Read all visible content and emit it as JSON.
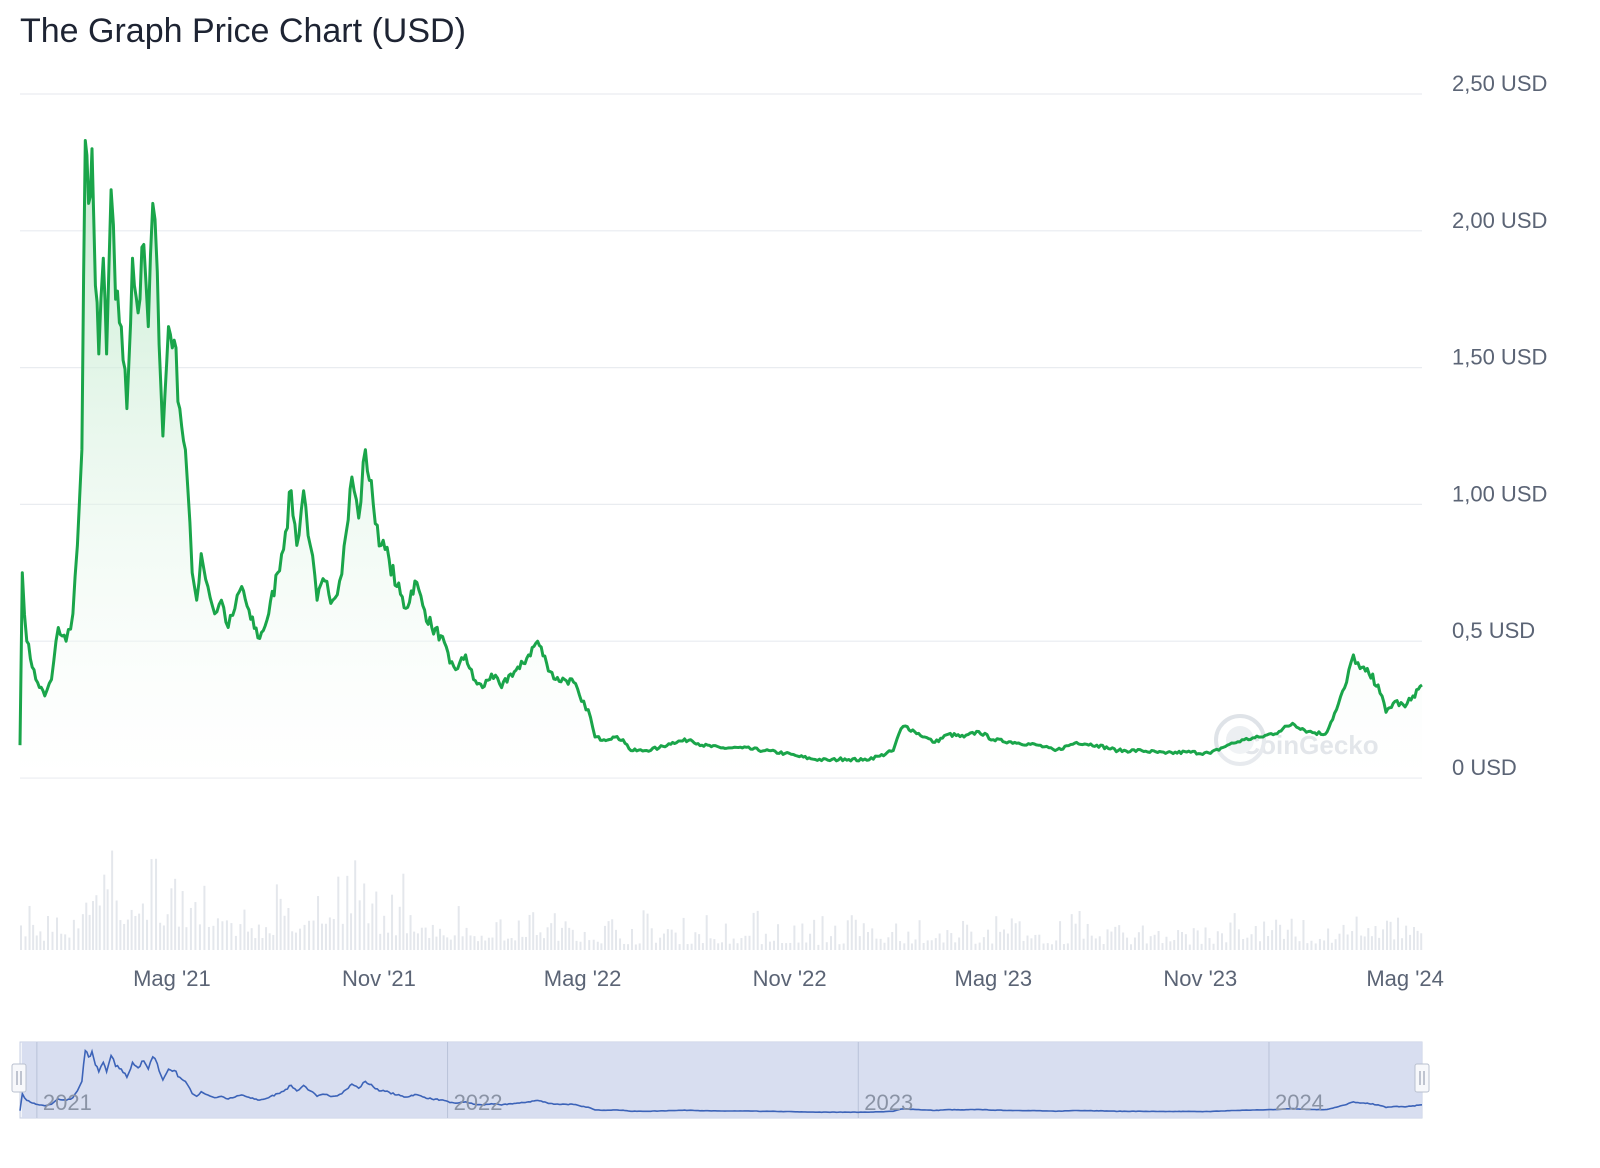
{
  "title": "The Graph Price Chart (USD)",
  "watermark": "CoinGecko",
  "colors": {
    "line": "#1aa54a",
    "fill_top": "#b9e7c6",
    "grid": "#e9ecf0",
    "volume": "#e4e7ec",
    "navigator_bg": "#d5dcee",
    "navigator_line": "#3c63b8"
  },
  "chart_data": {
    "type": "area",
    "title": "The Graph Price Chart (USD)",
    "ylabel": "",
    "ylim": [
      0,
      2.5
    ],
    "y_tick_labels": [
      "0 USD",
      "0,5 USD",
      "1,00 USD",
      "1,50 USD",
      "2,00 USD",
      "2,50 USD"
    ],
    "y_tick_values": [
      0,
      0.5,
      1.0,
      1.5,
      2.0,
      2.5
    ],
    "x_tick_labels": [
      "Mag '21",
      "Nov '21",
      "Mag '22",
      "Nov '22",
      "Mag '23",
      "Nov '23",
      "Mag '24"
    ],
    "x_tick_dates": [
      "2021-05-01",
      "2021-11-01",
      "2022-05-01",
      "2022-11-01",
      "2023-05-01",
      "2023-11-01",
      "2024-05-01"
    ],
    "xlim": [
      "2020-12-17",
      "2024-05-16"
    ],
    "grid": true,
    "series": [
      {
        "values": [
          [
            "2020-12-17",
            0.12
          ],
          [
            "2020-12-19",
            0.75
          ],
          [
            "2020-12-23",
            0.5
          ],
          [
            "2020-12-31",
            0.36
          ],
          [
            "2021-01-08",
            0.3
          ],
          [
            "2021-01-14",
            0.36
          ],
          [
            "2021-01-20",
            0.55
          ],
          [
            "2021-01-27",
            0.5
          ],
          [
            "2021-02-02",
            0.6
          ],
          [
            "2021-02-06",
            0.85
          ],
          [
            "2021-02-10",
            1.2
          ],
          [
            "2021-02-13",
            2.33
          ],
          [
            "2021-02-16",
            2.1
          ],
          [
            "2021-02-19",
            2.3
          ],
          [
            "2021-02-22",
            1.8
          ],
          [
            "2021-02-25",
            1.55
          ],
          [
            "2021-03-01",
            1.9
          ],
          [
            "2021-03-04",
            1.55
          ],
          [
            "2021-03-08",
            2.15
          ],
          [
            "2021-03-12",
            1.75
          ],
          [
            "2021-03-17",
            1.65
          ],
          [
            "2021-03-22",
            1.35
          ],
          [
            "2021-03-27",
            1.9
          ],
          [
            "2021-04-01",
            1.7
          ],
          [
            "2021-04-06",
            1.95
          ],
          [
            "2021-04-10",
            1.65
          ],
          [
            "2021-04-14",
            2.1
          ],
          [
            "2021-04-18",
            1.85
          ],
          [
            "2021-04-23",
            1.25
          ],
          [
            "2021-04-28",
            1.65
          ],
          [
            "2021-05-03",
            1.6
          ],
          [
            "2021-05-08",
            1.35
          ],
          [
            "2021-05-13",
            1.2
          ],
          [
            "2021-05-19",
            0.75
          ],
          [
            "2021-05-23",
            0.65
          ],
          [
            "2021-05-27",
            0.82
          ],
          [
            "2021-06-02",
            0.7
          ],
          [
            "2021-06-08",
            0.6
          ],
          [
            "2021-06-14",
            0.65
          ],
          [
            "2021-06-20",
            0.55
          ],
          [
            "2021-06-26",
            0.62
          ],
          [
            "2021-07-02",
            0.7
          ],
          [
            "2021-07-10",
            0.58
          ],
          [
            "2021-07-18",
            0.51
          ],
          [
            "2021-07-26",
            0.6
          ],
          [
            "2021-08-03",
            0.75
          ],
          [
            "2021-08-10",
            0.9
          ],
          [
            "2021-08-15",
            1.05
          ],
          [
            "2021-08-20",
            0.85
          ],
          [
            "2021-08-26",
            1.05
          ],
          [
            "2021-09-01",
            0.85
          ],
          [
            "2021-09-07",
            0.65
          ],
          [
            "2021-09-14",
            0.72
          ],
          [
            "2021-09-21",
            0.65
          ],
          [
            "2021-09-27",
            0.72
          ],
          [
            "2021-10-03",
            0.9
          ],
          [
            "2021-10-08",
            1.1
          ],
          [
            "2021-10-14",
            0.95
          ],
          [
            "2021-10-20",
            1.2
          ],
          [
            "2021-10-27",
            1.0
          ],
          [
            "2021-11-03",
            0.85
          ],
          [
            "2021-11-10",
            0.8
          ],
          [
            "2021-11-17",
            0.7
          ],
          [
            "2021-11-25",
            0.62
          ],
          [
            "2021-12-03",
            0.72
          ],
          [
            "2021-12-10",
            0.63
          ],
          [
            "2021-12-18",
            0.55
          ],
          [
            "2021-12-26",
            0.52
          ],
          [
            "2022-01-03",
            0.42
          ],
          [
            "2022-01-10",
            0.4
          ],
          [
            "2022-01-17",
            0.45
          ],
          [
            "2022-01-24",
            0.36
          ],
          [
            "2022-02-01",
            0.33
          ],
          [
            "2022-02-09",
            0.38
          ],
          [
            "2022-02-18",
            0.33
          ],
          [
            "2022-02-26",
            0.38
          ],
          [
            "2022-03-06",
            0.4
          ],
          [
            "2022-03-14",
            0.45
          ],
          [
            "2022-03-22",
            0.5
          ],
          [
            "2022-03-30",
            0.42
          ],
          [
            "2022-04-07",
            0.36
          ],
          [
            "2022-04-15",
            0.36
          ],
          [
            "2022-04-23",
            0.35
          ],
          [
            "2022-04-30",
            0.28
          ],
          [
            "2022-05-06",
            0.25
          ],
          [
            "2022-05-12",
            0.15
          ],
          [
            "2022-05-20",
            0.14
          ],
          [
            "2022-05-28",
            0.15
          ],
          [
            "2022-06-06",
            0.14
          ],
          [
            "2022-06-13",
            0.1
          ],
          [
            "2022-06-25",
            0.1
          ],
          [
            "2022-07-08",
            0.11
          ],
          [
            "2022-07-20",
            0.13
          ],
          [
            "2022-08-05",
            0.14
          ],
          [
            "2022-08-15",
            0.12
          ],
          [
            "2022-09-01",
            0.11
          ],
          [
            "2022-09-20",
            0.11
          ],
          [
            "2022-10-10",
            0.1
          ],
          [
            "2022-10-28",
            0.09
          ],
          [
            "2022-11-08",
            0.08
          ],
          [
            "2022-11-20",
            0.07
          ],
          [
            "2022-12-05",
            0.065
          ],
          [
            "2022-12-20",
            0.07
          ],
          [
            "2023-01-05",
            0.065
          ],
          [
            "2023-01-20",
            0.08
          ],
          [
            "2023-02-01",
            0.1
          ],
          [
            "2023-02-08",
            0.18
          ],
          [
            "2023-02-12",
            0.19
          ],
          [
            "2023-02-20",
            0.17
          ],
          [
            "2023-03-01",
            0.15
          ],
          [
            "2023-03-10",
            0.13
          ],
          [
            "2023-03-22",
            0.16
          ],
          [
            "2023-04-05",
            0.15
          ],
          [
            "2023-04-18",
            0.17
          ],
          [
            "2023-05-01",
            0.14
          ],
          [
            "2023-05-20",
            0.13
          ],
          [
            "2023-06-10",
            0.12
          ],
          [
            "2023-06-25",
            0.1
          ],
          [
            "2023-07-14",
            0.13
          ],
          [
            "2023-08-01",
            0.12
          ],
          [
            "2023-08-20",
            0.1
          ],
          [
            "2023-09-10",
            0.1
          ],
          [
            "2023-10-01",
            0.09
          ],
          [
            "2023-10-20",
            0.095
          ],
          [
            "2023-11-10",
            0.09
          ],
          [
            "2023-11-25",
            0.12
          ],
          [
            "2023-12-10",
            0.14
          ],
          [
            "2023-12-25",
            0.15
          ],
          [
            "2024-01-10",
            0.17
          ],
          [
            "2024-01-22",
            0.2
          ],
          [
            "2024-02-05",
            0.17
          ],
          [
            "2024-02-20",
            0.16
          ],
          [
            "2024-03-01",
            0.25
          ],
          [
            "2024-03-10",
            0.35
          ],
          [
            "2024-03-16",
            0.45
          ],
          [
            "2024-03-22",
            0.4
          ],
          [
            "2024-03-30",
            0.38
          ],
          [
            "2024-04-07",
            0.34
          ],
          [
            "2024-04-14",
            0.24
          ],
          [
            "2024-04-22",
            0.28
          ],
          [
            "2024-05-01",
            0.26
          ],
          [
            "2024-05-08",
            0.3
          ],
          [
            "2024-05-16",
            0.34
          ]
        ]
      }
    ],
    "navigator_labels": [
      "2021",
      "2022",
      "2023",
      "2024"
    ],
    "navigator_dates": [
      "2021-01-01",
      "2022-01-01",
      "2023-01-01",
      "2024-01-01"
    ]
  }
}
